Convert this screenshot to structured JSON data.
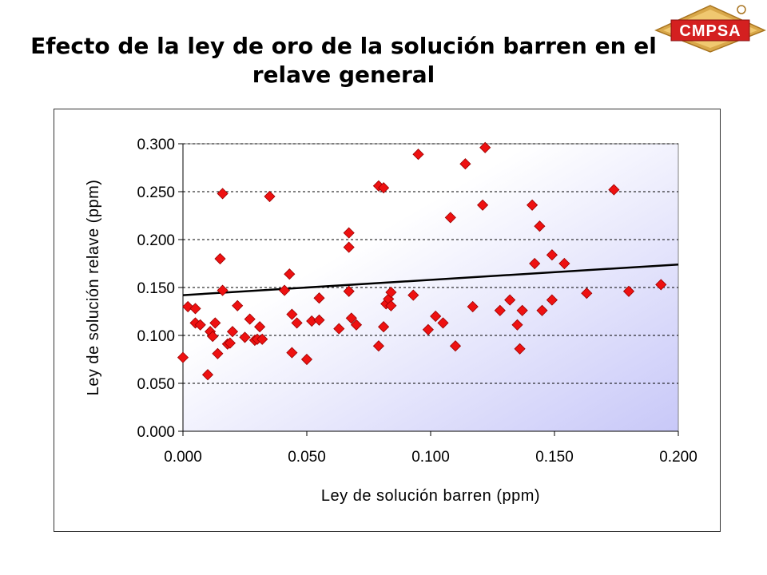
{
  "slide": {
    "title_line1": "Efecto de la ley de oro de la solución barren en el",
    "title_line2": "relave general",
    "logo_text": "CMPSA"
  },
  "colors": {
    "marker": "#ee1111",
    "marker_stroke": "#990000",
    "trendline": "#000000",
    "gradient_start": "#ffffff",
    "gradient_end": "#c8c8f8",
    "logo_gold": "#d9a84a",
    "logo_red": "#d42020"
  },
  "chart_data": {
    "type": "scatter",
    "title": "",
    "xlabel": "Ley de solución barren (ppm)",
    "ylabel": "Ley de solución relave (ppm)",
    "xlim": [
      0.0,
      0.2
    ],
    "ylim": [
      0.0,
      0.3
    ],
    "x_ticks": [
      "0.000",
      "0.050",
      "0.100",
      "0.150",
      "0.200"
    ],
    "y_ticks": [
      "0.000",
      "0.050",
      "0.100",
      "0.150",
      "0.200",
      "0.250",
      "0.300"
    ],
    "grid": "horizontal dashed",
    "legend": "none",
    "trendline": {
      "x": [
        0.0,
        0.2
      ],
      "y": [
        0.142,
        0.174
      ]
    },
    "points": [
      [
        0.0,
        0.077
      ],
      [
        0.002,
        0.13
      ],
      [
        0.005,
        0.128
      ],
      [
        0.005,
        0.113
      ],
      [
        0.007,
        0.111
      ],
      [
        0.01,
        0.059
      ],
      [
        0.011,
        0.104
      ],
      [
        0.012,
        0.099
      ],
      [
        0.013,
        0.113
      ],
      [
        0.014,
        0.081
      ],
      [
        0.015,
        0.18
      ],
      [
        0.016,
        0.248
      ],
      [
        0.016,
        0.147
      ],
      [
        0.018,
        0.091
      ],
      [
        0.019,
        0.092
      ],
      [
        0.02,
        0.104
      ],
      [
        0.022,
        0.131
      ],
      [
        0.025,
        0.098
      ],
      [
        0.027,
        0.117
      ],
      [
        0.029,
        0.095
      ],
      [
        0.03,
        0.096
      ],
      [
        0.031,
        0.109
      ],
      [
        0.032,
        0.096
      ],
      [
        0.035,
        0.245
      ],
      [
        0.041,
        0.147
      ],
      [
        0.043,
        0.164
      ],
      [
        0.044,
        0.082
      ],
      [
        0.044,
        0.122
      ],
      [
        0.046,
        0.113
      ],
      [
        0.05,
        0.075
      ],
      [
        0.052,
        0.115
      ],
      [
        0.055,
        0.139
      ],
      [
        0.055,
        0.116
      ],
      [
        0.063,
        0.107
      ],
      [
        0.067,
        0.207
      ],
      [
        0.067,
        0.192
      ],
      [
        0.067,
        0.146
      ],
      [
        0.068,
        0.118
      ],
      [
        0.07,
        0.111
      ],
      [
        0.079,
        0.256
      ],
      [
        0.079,
        0.089
      ],
      [
        0.081,
        0.254
      ],
      [
        0.081,
        0.109
      ],
      [
        0.082,
        0.133
      ],
      [
        0.083,
        0.138
      ],
      [
        0.084,
        0.131
      ],
      [
        0.084,
        0.145
      ],
      [
        0.093,
        0.142
      ],
      [
        0.095,
        0.289
      ],
      [
        0.099,
        0.106
      ],
      [
        0.102,
        0.12
      ],
      [
        0.105,
        0.113
      ],
      [
        0.108,
        0.223
      ],
      [
        0.11,
        0.089
      ],
      [
        0.114,
        0.279
      ],
      [
        0.117,
        0.13
      ],
      [
        0.121,
        0.236
      ],
      [
        0.122,
        0.296
      ],
      [
        0.128,
        0.126
      ],
      [
        0.132,
        0.137
      ],
      [
        0.135,
        0.111
      ],
      [
        0.136,
        0.086
      ],
      [
        0.137,
        0.126
      ],
      [
        0.141,
        0.236
      ],
      [
        0.142,
        0.175
      ],
      [
        0.144,
        0.214
      ],
      [
        0.145,
        0.126
      ],
      [
        0.149,
        0.184
      ],
      [
        0.149,
        0.137
      ],
      [
        0.154,
        0.175
      ],
      [
        0.163,
        0.144
      ],
      [
        0.174,
        0.252
      ],
      [
        0.18,
        0.146
      ],
      [
        0.193,
        0.153
      ]
    ]
  }
}
